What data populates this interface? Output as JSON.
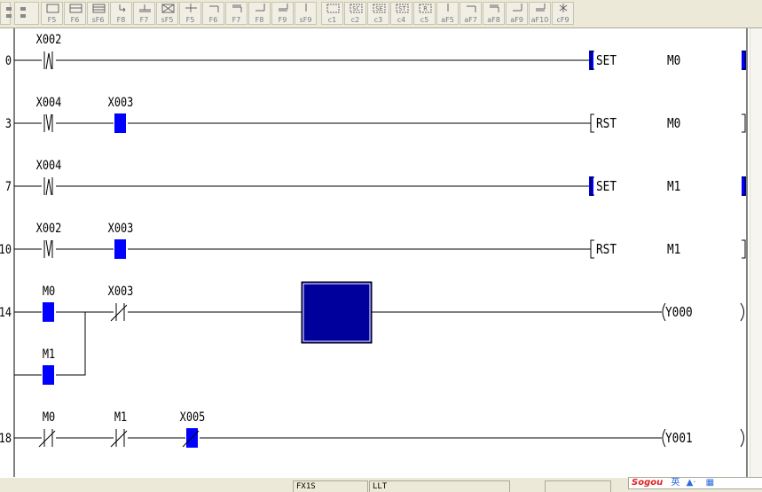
{
  "toolbar": {
    "left_icons": [
      {
        "icon": "ladder-icon"
      },
      {
        "icon": "sort-icon"
      }
    ],
    "buttons": [
      {
        "key": "F5",
        "icon": "open-contact-icon"
      },
      {
        "key": "F6",
        "icon": "closed-contact-icon"
      },
      {
        "key": "sF6",
        "icon": "parallel-closed-contact-icon"
      },
      {
        "key": "F8",
        "icon": "application-instruction-icon"
      },
      {
        "key": "F7",
        "icon": "coil-icon"
      },
      {
        "key": "sF5",
        "icon": "delete-icon"
      },
      {
        "key": "F5",
        "icon": "cross-line-icon"
      },
      {
        "key": "F6",
        "icon": "corner-line-icon"
      },
      {
        "key": "F7",
        "icon": "double-corner-line-icon"
      },
      {
        "key": "F8",
        "icon": "bottom-line-icon"
      },
      {
        "key": "F9",
        "icon": "double-bottom-line-icon"
      },
      {
        "key": "sF9",
        "icon": "vertical-line-icon"
      },
      {
        "key": "c1",
        "icon": "box-icon"
      },
      {
        "key": "c2",
        "icon": "sc-icon",
        "text": "SC"
      },
      {
        "key": "c3",
        "icon": "se-icon",
        "text": "SE"
      },
      {
        "key": "c4",
        "icon": "st-icon",
        "text": "ST"
      },
      {
        "key": "c5",
        "icon": "r-icon",
        "text": "R"
      },
      {
        "key": "aF5",
        "icon": "vertical-line-icon"
      },
      {
        "key": "aF7",
        "icon": "corner-line-icon"
      },
      {
        "key": "aF8",
        "icon": "double-corner-line-icon"
      },
      {
        "key": "aF9",
        "icon": "bottom-line-icon"
      },
      {
        "key": "aF10",
        "icon": "double-bottom-line-icon"
      },
      {
        "key": "cF9",
        "icon": "invert-icon"
      }
    ]
  },
  "colors": {
    "on_state": "#0000ff",
    "cursor": "#00009c",
    "line": "#000000",
    "background": "#ffffff"
  },
  "ladder": {
    "rungs": [
      {
        "step": "0",
        "contacts": [
          {
            "label": "X002",
            "type": "rising-pulse",
            "on": false
          }
        ],
        "output": {
          "type": "instruction",
          "instr": "SET",
          "operand": "M0",
          "on": true
        }
      },
      {
        "step": "3",
        "contacts": [
          {
            "label": "X004",
            "type": "falling-pulse",
            "on": false
          },
          {
            "label": "X003",
            "type": "no",
            "on": true
          }
        ],
        "output": {
          "type": "instruction",
          "instr": "RST",
          "operand": "M0",
          "on": false
        }
      },
      {
        "step": "7",
        "contacts": [
          {
            "label": "X004",
            "type": "rising-pulse",
            "on": false
          }
        ],
        "output": {
          "type": "instruction",
          "instr": "SET",
          "operand": "M1",
          "on": true
        }
      },
      {
        "step": "10",
        "contacts": [
          {
            "label": "X002",
            "type": "falling-pulse",
            "on": false
          },
          {
            "label": "X003",
            "type": "no",
            "on": true
          }
        ],
        "output": {
          "type": "instruction",
          "instr": "RST",
          "operand": "M1",
          "on": false
        }
      },
      {
        "step": "14",
        "contacts": [
          {
            "label": "M0",
            "type": "no",
            "on": true
          },
          {
            "label": "X003",
            "type": "nc",
            "on": false
          }
        ],
        "branch": [
          {
            "label": "M1",
            "type": "no",
            "on": true
          }
        ],
        "output": {
          "type": "coil",
          "operand": "Y000",
          "on": false
        },
        "cursor": true
      },
      {
        "step": "18",
        "contacts": [
          {
            "label": "M0",
            "type": "nc",
            "on": false
          },
          {
            "label": "M1",
            "type": "nc",
            "on": false
          },
          {
            "label": "X005",
            "type": "nc",
            "on": true
          }
        ],
        "output": {
          "type": "coil",
          "operand": "Y001",
          "on": false
        }
      }
    ]
  },
  "statusbar": {
    "plc_type": "FX1S",
    "mode": "LLT"
  },
  "ime": {
    "brand": "Sogou",
    "lang": "英"
  }
}
